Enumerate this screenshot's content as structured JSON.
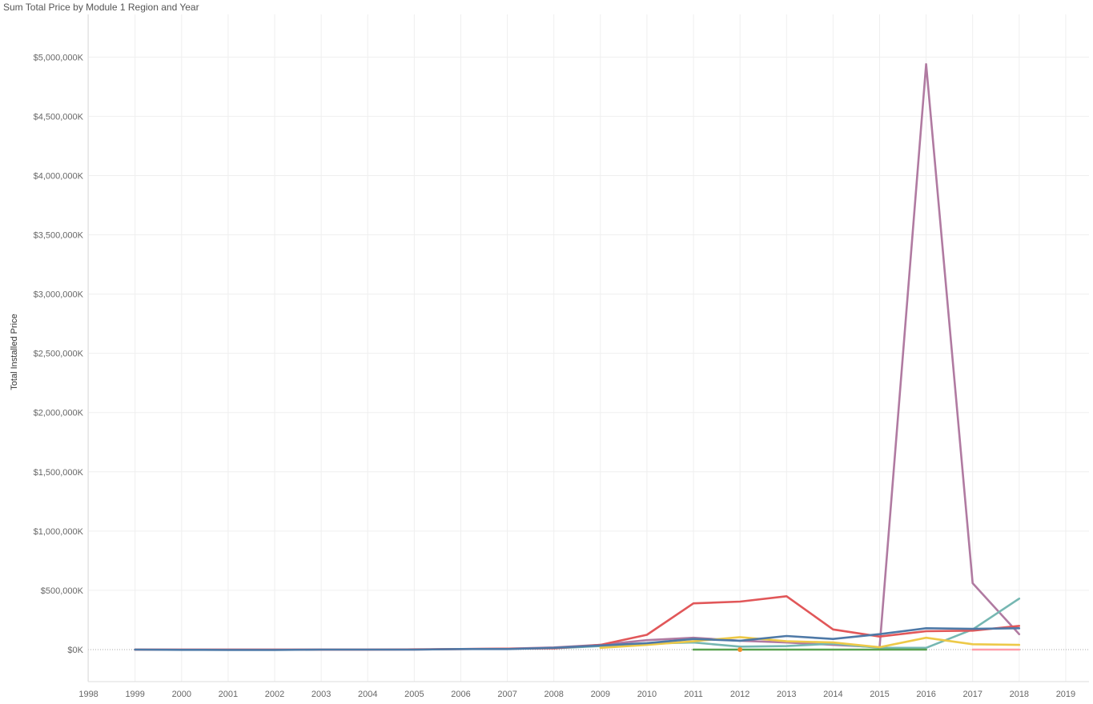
{
  "chart_data": {
    "type": "line",
    "title": "Sum Total Price by Module 1 Region and Year",
    "xlabel": "",
    "ylabel": "Total Installed Price",
    "x": [
      1998,
      1999,
      2000,
      2001,
      2002,
      2003,
      2004,
      2005,
      2006,
      2007,
      2008,
      2009,
      2010,
      2011,
      2012,
      2013,
      2014,
      2015,
      2016,
      2017,
      2018,
      2019
    ],
    "x_tick_labels": [
      "1998",
      "1999",
      "2000",
      "2001",
      "2002",
      "2003",
      "2004",
      "2005",
      "2006",
      "2007",
      "2008",
      "2009",
      "2010",
      "2011",
      "2012",
      "2013",
      "2014",
      "2015",
      "2016",
      "2017",
      "2018",
      "2019"
    ],
    "y_ticks": [
      0,
      500000,
      1000000,
      1500000,
      2000000,
      2500000,
      3000000,
      3500000,
      4000000,
      4500000,
      5000000
    ],
    "y_tick_labels": [
      "$0K",
      "$500,000K",
      "$1,000,000K",
      "$1,500,000K",
      "$2,000,000K",
      "$2,500,000K",
      "$3,000,000K",
      "$3,500,000K",
      "$4,000,000K",
      "$4,500,000K",
      "$5,000,000K"
    ],
    "xlim": [
      1997.99,
      2019.5
    ],
    "ylim": [
      -270000,
      5360000
    ],
    "value_unit": "thousands of dollars",
    "grid": true,
    "zero_line": "dotted",
    "legend": "none",
    "series": [
      {
        "color": "#b07aa1",
        "points": [
          [
            1999,
            0
          ],
          [
            2000,
            0
          ],
          [
            2001,
            0
          ],
          [
            2002,
            0
          ],
          [
            2003,
            0
          ],
          [
            2004,
            0
          ],
          [
            2005,
            0
          ],
          [
            2006,
            5000
          ],
          [
            2007,
            8000
          ],
          [
            2008,
            18000
          ],
          [
            2009,
            40000
          ],
          [
            2010,
            80000
          ],
          [
            2011,
            100000
          ],
          [
            2012,
            75000
          ],
          [
            2013,
            60000
          ],
          [
            2014,
            40000
          ],
          [
            2015,
            20000
          ],
          [
            2016,
            4940000
          ],
          [
            2017,
            560000
          ],
          [
            2018,
            130000
          ]
        ]
      },
      {
        "color": "#76b7b2",
        "points": [
          [
            2008,
            10000
          ],
          [
            2009,
            30000
          ],
          [
            2010,
            50000
          ],
          [
            2011,
            60000
          ],
          [
            2012,
            25000
          ],
          [
            2013,
            30000
          ],
          [
            2014,
            50000
          ],
          [
            2015,
            15000
          ],
          [
            2016,
            15000
          ],
          [
            2017,
            170000
          ],
          [
            2018,
            430000
          ]
        ]
      },
      {
        "color": "#edc948",
        "points": [
          [
            2009,
            15000
          ],
          [
            2010,
            40000
          ],
          [
            2011,
            70000
          ],
          [
            2012,
            105000
          ],
          [
            2013,
            70000
          ],
          [
            2014,
            60000
          ],
          [
            2015,
            20000
          ],
          [
            2016,
            100000
          ],
          [
            2017,
            45000
          ],
          [
            2018,
            40000
          ]
        ]
      },
      {
        "color": "#e15759",
        "points": [
          [
            1999,
            0
          ],
          [
            2000,
            0
          ],
          [
            2001,
            0
          ],
          [
            2002,
            0
          ],
          [
            2003,
            0
          ],
          [
            2004,
            0
          ],
          [
            2005,
            2000
          ],
          [
            2006,
            5000
          ],
          [
            2007,
            8000
          ],
          [
            2008,
            10000
          ],
          [
            2009,
            40000
          ],
          [
            2010,
            125000
          ],
          [
            2011,
            390000
          ],
          [
            2012,
            405000
          ],
          [
            2013,
            450000
          ],
          [
            2014,
            170000
          ],
          [
            2015,
            110000
          ],
          [
            2016,
            155000
          ],
          [
            2017,
            160000
          ],
          [
            2018,
            200000
          ]
        ]
      },
      {
        "color": "#4e79a7",
        "points": [
          [
            1999,
            0
          ],
          [
            2000,
            -2000
          ],
          [
            2001,
            -3000
          ],
          [
            2002,
            -3000
          ],
          [
            2003,
            0
          ],
          [
            2004,
            0
          ],
          [
            2005,
            0
          ],
          [
            2006,
            5000
          ],
          [
            2007,
            5000
          ],
          [
            2008,
            15000
          ],
          [
            2009,
            35000
          ],
          [
            2010,
            55000
          ],
          [
            2011,
            90000
          ],
          [
            2012,
            75000
          ],
          [
            2013,
            115000
          ],
          [
            2014,
            90000
          ],
          [
            2015,
            130000
          ],
          [
            2016,
            180000
          ],
          [
            2017,
            175000
          ],
          [
            2018,
            180000
          ]
        ]
      },
      {
        "color": "#59a14f",
        "points": [
          [
            2011,
            0
          ],
          [
            2012,
            0
          ],
          [
            2013,
            0
          ],
          [
            2014,
            0
          ],
          [
            2015,
            0
          ],
          [
            2016,
            0
          ]
        ]
      },
      {
        "color": "#ff9da7",
        "points": [
          [
            2017,
            0
          ],
          [
            2018,
            0
          ]
        ]
      },
      {
        "color": "#f28e2b",
        "points": [
          [
            2012,
            0
          ]
        ],
        "marker": true
      }
    ]
  }
}
